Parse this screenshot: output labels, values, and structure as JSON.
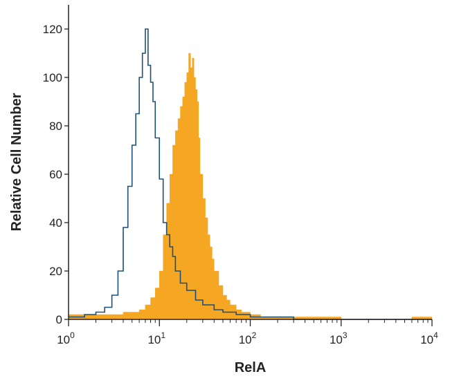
{
  "chart_data": {
    "type": "area",
    "title": "",
    "xlabel": "RelA",
    "ylabel": "Relative Cell Number",
    "xscale": "log",
    "xlim": [
      1,
      10000
    ],
    "ylim": [
      0,
      130
    ],
    "grid": false,
    "legend": "none",
    "y_ticks": [
      0,
      20,
      40,
      60,
      80,
      100,
      120
    ],
    "y_tick_labels": [
      "0",
      "20",
      "40",
      "60",
      "80",
      "100",
      "120"
    ],
    "x_ticks": [
      1,
      10,
      100,
      1000,
      10000
    ],
    "x_tick_labels": [
      {
        "base": "10",
        "exp": "0"
      },
      {
        "base": "10",
        "exp": "1"
      },
      {
        "base": "10",
        "exp": "2"
      },
      {
        "base": "10",
        "exp": "3"
      },
      {
        "base": "10",
        "exp": "4"
      }
    ],
    "series": [
      {
        "style": "filled",
        "color": "#F5A623",
        "x": [
          1,
          1.5,
          2,
          3,
          4,
          5,
          6,
          7,
          8,
          9,
          10,
          11,
          12,
          13,
          14,
          15,
          16,
          17,
          18,
          19,
          20,
          21,
          22,
          23,
          24,
          25,
          26,
          27,
          28,
          30,
          32,
          34,
          36,
          38,
          40,
          45,
          50,
          55,
          60,
          70,
          80,
          100,
          130,
          200,
          300,
          500,
          1000,
          3000,
          6000,
          10000
        ],
        "y": [
          2,
          2,
          2,
          2,
          3,
          3,
          4,
          6,
          9,
          13,
          20,
          35,
          48,
          60,
          72,
          78,
          83,
          88,
          92,
          98,
          102,
          110,
          104,
          108,
          100,
          95,
          90,
          75,
          60,
          50,
          42,
          35,
          30,
          25,
          20,
          14,
          10,
          8,
          6,
          4,
          3,
          2,
          1,
          1,
          1,
          1,
          0,
          0,
          1,
          0
        ]
      },
      {
        "style": "outline",
        "color": "#1B4F7A",
        "x": [
          1,
          1.5,
          2,
          2.5,
          3,
          3.5,
          4,
          4.5,
          5,
          5.5,
          6,
          6.5,
          7,
          7.5,
          8,
          8.5,
          9,
          10,
          11,
          12,
          13,
          14,
          15,
          17,
          20,
          25,
          30,
          40,
          50,
          70,
          100,
          150,
          200,
          300,
          500,
          1000,
          3000,
          10000
        ],
        "y": [
          1,
          2,
          3,
          5,
          10,
          20,
          38,
          55,
          72,
          85,
          100,
          110,
          120,
          105,
          98,
          90,
          75,
          58,
          40,
          35,
          30,
          26,
          20,
          15,
          12,
          8,
          6,
          4,
          3,
          2,
          1,
          1,
          1,
          0,
          0,
          0,
          0,
          0
        ]
      }
    ]
  }
}
